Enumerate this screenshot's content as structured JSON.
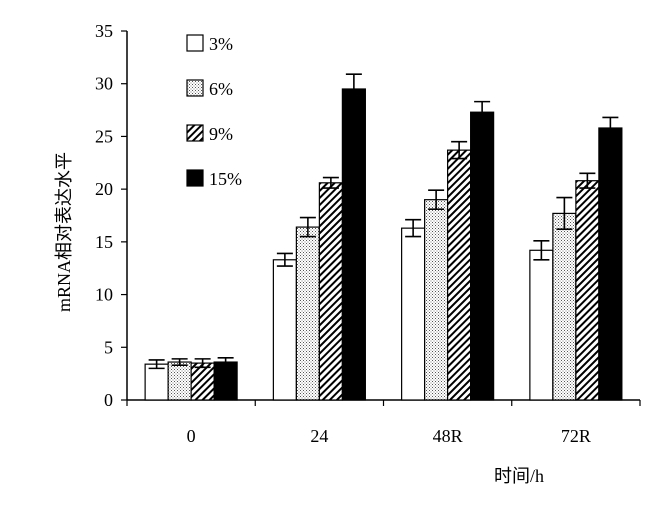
{
  "chart_data": {
    "type": "bar",
    "title": "",
    "ylabel": "mRNA相对表达水平",
    "xlabel": "时间/h",
    "categories": [
      "0",
      "24",
      "48R",
      "72R"
    ],
    "ylim": [
      0,
      35
    ],
    "yticks": [
      0,
      5,
      10,
      15,
      20,
      25,
      30,
      35
    ],
    "legend_position": "top-left",
    "grid": false,
    "series": [
      {
        "name": "3%",
        "pattern": "white",
        "values": [
          3.4,
          13.3,
          16.3,
          14.2
        ],
        "errors": [
          0.4,
          0.6,
          0.8,
          0.9
        ]
      },
      {
        "name": "6%",
        "pattern": "dotted",
        "values": [
          3.6,
          16.4,
          19.0,
          17.7
        ],
        "errors": [
          0.3,
          0.9,
          0.9,
          1.5
        ]
      },
      {
        "name": "9%",
        "pattern": "hatched",
        "values": [
          3.5,
          20.6,
          23.7,
          20.8
        ],
        "errors": [
          0.4,
          0.5,
          0.8,
          0.7
        ]
      },
      {
        "name": "15%",
        "pattern": "black",
        "values": [
          3.6,
          29.5,
          27.3,
          25.8
        ],
        "errors": [
          0.4,
          1.4,
          1.0,
          1.0
        ]
      }
    ]
  }
}
